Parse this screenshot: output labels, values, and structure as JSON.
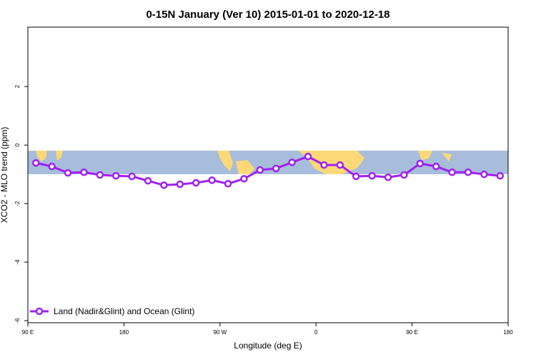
{
  "chart_data": {
    "type": "line",
    "title": "0-15N January (Ver 10)   2015-01-01 to 2020-12-18",
    "x_label": "Longitude (deg E)",
    "y_label": "XCO2 - MLO trend (ppm)",
    "x": [
      97.5,
      112.5,
      127.5,
      142.5,
      157.5,
      172.5,
      187.5,
      202.5,
      217.5,
      232.5,
      247.5,
      262.5,
      277.5,
      292.5,
      307.5,
      322.5,
      337.5,
      352.5,
      367.5,
      382.5,
      397.5,
      412.5,
      427.5,
      442.5,
      457.5,
      472.5,
      487.5,
      502.5,
      517.5,
      532.5
    ],
    "series": [
      {
        "name": "Land (Nadir&Glint) and Ocean (Glint)",
        "color": "#a020f0",
        "values": [
          -0.61,
          -0.73,
          -0.95,
          -0.93,
          -1.02,
          -1.05,
          -1.07,
          -1.22,
          -1.37,
          -1.34,
          -1.29,
          -1.2,
          -1.32,
          -1.15,
          -0.85,
          -0.8,
          -0.59,
          -0.39,
          -0.68,
          -0.68,
          -1.07,
          -1.05,
          -1.1,
          -1.02,
          -0.63,
          -0.73,
          -0.93,
          -0.93,
          -1.0,
          -1.05
        ]
      }
    ],
    "xlim": [
      90,
      540
    ],
    "ylim": [
      -6.07,
      4.03
    ],
    "xticks": [
      {
        "value": 90,
        "label": "90 E"
      },
      {
        "value": 180,
        "label": "180"
      },
      {
        "value": 270,
        "label": "90 W"
      },
      {
        "value": 360,
        "label": "0"
      },
      {
        "value": 450,
        "label": "90 E"
      },
      {
        "value": 540,
        "label": "180"
      }
    ],
    "yticks": [
      -6,
      -4,
      -2,
      0,
      2
    ],
    "legend": "bottom-left"
  }
}
